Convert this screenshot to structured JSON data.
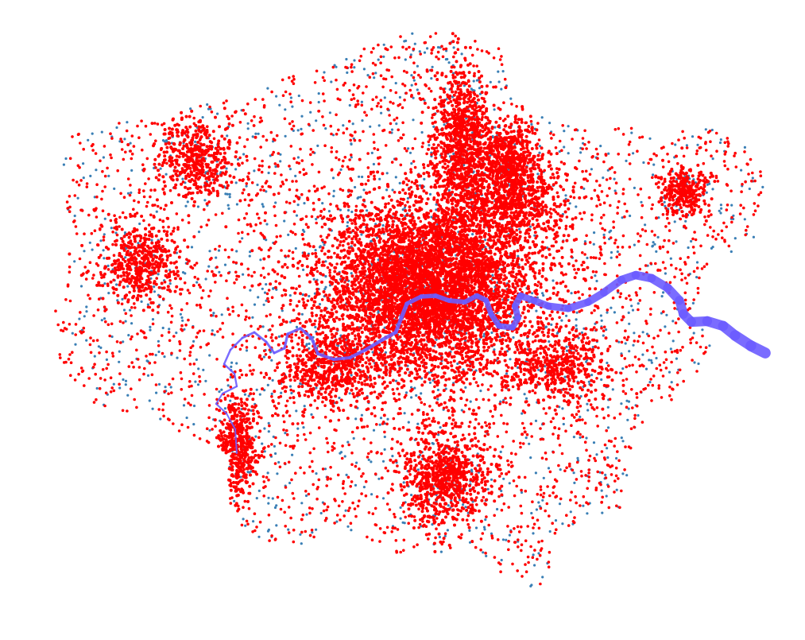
{
  "map": {
    "legend": [],
    "point_categories": [
      {
        "color": "#ff0000"
      },
      {
        "color": "#3a7fb5"
      }
    ],
    "river_color": "#6b5cff"
  }
}
